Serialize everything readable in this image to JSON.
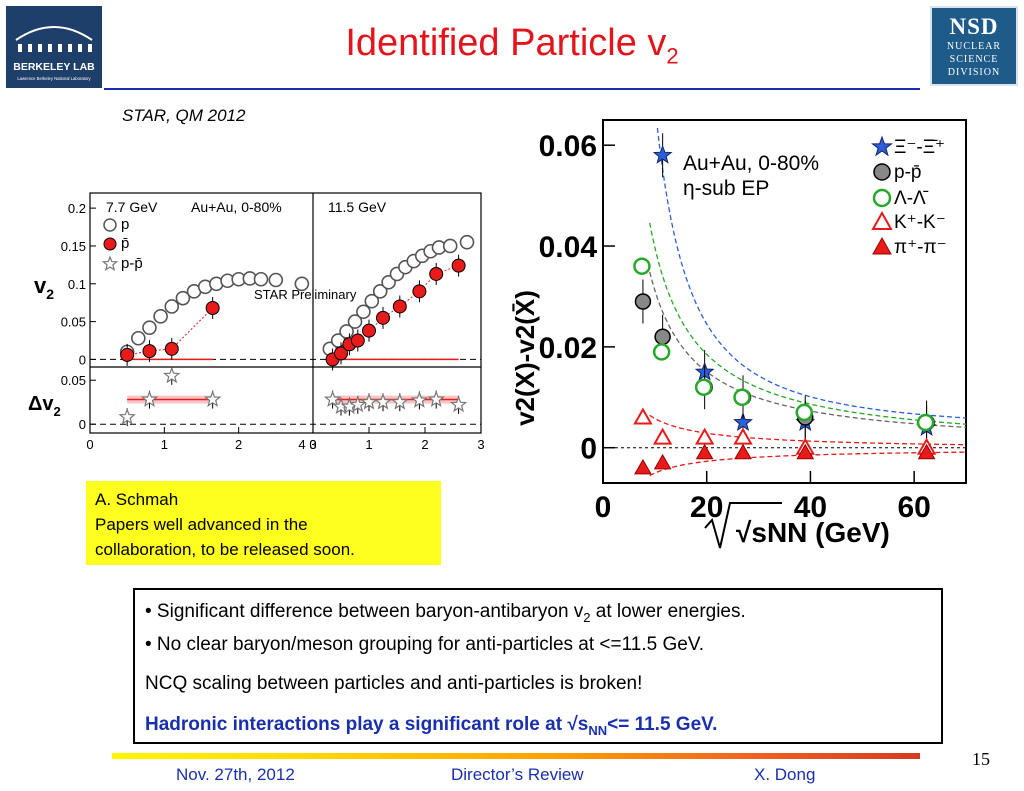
{
  "slide": {
    "title_main": "Identified Particle v",
    "title_sub": "2",
    "reference": "STAR, QM 2012",
    "page_number": "15"
  },
  "logos": {
    "left_line1": "BERKELEY LAB",
    "left_line2": "Lawrence Berkeley National Laboratory",
    "right_abbr": "NSD",
    "right_line1": "NUCLEAR",
    "right_line2": "SCIENCE",
    "right_line3": "DIVISION"
  },
  "note_box": {
    "line1": "A. Schmah",
    "line2": "Papers well advanced in the",
    "line3": "collaboration, to be released soon."
  },
  "summary": {
    "bullet1_pre": "• Significant difference between baryon-antibaryon v",
    "bullet1_sub": "2",
    "bullet1_post": " at lower energies.",
    "bullet2": "• No clear baryon/meson grouping for anti-particles at <=11.5 GeV.",
    "line3": "NCQ scaling between particles and anti-particles is broken!",
    "line4_pre": "Hadronic interactions play a significant role at √s",
    "line4_sub": "NN",
    "line4_post": "<= 11.5 GeV."
  },
  "footer": {
    "date": "Nov. 27th, 2012",
    "event": "Director’s Review",
    "author": "X. Dong"
  },
  "colors": {
    "title": "#e3141b",
    "accent_blue": "#1a2fb0",
    "note_bg": "#ffff1f",
    "proton_red": "#e81a1a",
    "green": "#27a829",
    "star_blue": "#2d5fd8"
  },
  "chart_data": [
    {
      "type": "scatter",
      "title": "7.7 GeV",
      "annotation": "Au+Au, 0-80%",
      "ylabel_main": "v",
      "ylabel_sub": "2",
      "ylabel_delta": "Δv",
      "xlim": [
        0,
        3
      ],
      "ylim": [
        -0.01,
        0.22
      ],
      "ylim_delta": [
        -0.01,
        0.065
      ],
      "yticks": [
        "0",
        "0.05",
        "0.1",
        "0.15",
        "0.2"
      ],
      "yticks_delta": [
        "0",
        "0.05"
      ],
      "xticks": [
        "0",
        "1",
        "2",
        "3"
      ],
      "legend": [
        "p",
        "p̄",
        "p-p̄"
      ],
      "series": [
        {
          "name": "p",
          "x": [
            0.5,
            0.65,
            0.8,
            0.95,
            1.1,
            1.25,
            1.4,
            1.55,
            1.7,
            1.85,
            2.0,
            2.15,
            2.3,
            2.5,
            2.85
          ],
          "y": [
            0.01,
            0.028,
            0.042,
            0.057,
            0.07,
            0.081,
            0.09,
            0.096,
            0.1,
            0.104,
            0.106,
            0.107,
            0.106,
            0.105,
            0.1
          ]
        },
        {
          "name": "p̄",
          "x": [
            0.5,
            0.8,
            1.1,
            1.65
          ],
          "y": [
            0.006,
            0.011,
            0.014,
            0.068
          ]
        },
        {
          "name": "p-p̄",
          "x": [
            0.5,
            0.8,
            1.1,
            1.65
          ],
          "y": [
            0.008,
            0.028,
            0.055,
            0.028
          ]
        }
      ]
    },
    {
      "type": "scatter",
      "title": "11.5 GeV",
      "annotation": "STAR Preliminary",
      "xlim": [
        0,
        3
      ],
      "ylim": [
        -0.01,
        0.22
      ],
      "ylim_delta": [
        -0.01,
        0.065
      ],
      "xticks": [
        "0",
        "1",
        "2",
        "3"
      ],
      "series": [
        {
          "name": "p",
          "x": [
            0.3,
            0.45,
            0.6,
            0.75,
            0.9,
            1.05,
            1.2,
            1.35,
            1.5,
            1.65,
            1.8,
            1.95,
            2.1,
            2.25,
            2.45,
            2.75
          ],
          "y": [
            0.014,
            0.025,
            0.037,
            0.05,
            0.063,
            0.077,
            0.09,
            0.102,
            0.113,
            0.122,
            0.13,
            0.137,
            0.143,
            0.148,
            0.15,
            0.155
          ]
        },
        {
          "name": "p̄",
          "x": [
            0.35,
            0.5,
            0.65,
            0.8,
            1.0,
            1.25,
            1.55,
            1.9,
            2.2,
            2.6
          ],
          "y": [
            0.0,
            0.008,
            0.02,
            0.025,
            0.038,
            0.055,
            0.07,
            0.09,
            0.113,
            0.124
          ]
        },
        {
          "name": "p-p̄",
          "x": [
            0.35,
            0.5,
            0.65,
            0.8,
            1.0,
            1.25,
            1.55,
            1.9,
            2.2,
            2.6
          ],
          "y": [
            0.028,
            0.02,
            0.02,
            0.022,
            0.025,
            0.025,
            0.025,
            0.027,
            0.028,
            0.022
          ]
        }
      ]
    },
    {
      "type": "scatter",
      "title": "Au+Au, 0-80%",
      "subtitle": "η-sub EP",
      "ylabel": "v2(X)-v2(X̄)",
      "xlabel": "√sNN (GeV)",
      "xlim": [
        0,
        70
      ],
      "ylim": [
        -0.007,
        0.065
      ],
      "xticks": [
        "0",
        "20",
        "40",
        "60"
      ],
      "yticks": [
        "0",
        "0.02",
        "0.04",
        "0.06"
      ],
      "legend_position": "top-right",
      "series": [
        {
          "name": "Ξ⁻-Ξ̄⁺",
          "x": [
            11.5,
            19.6,
            27,
            39,
            62.4
          ],
          "y": [
            0.058,
            0.015,
            0.005,
            0.005,
            0.004
          ]
        },
        {
          "name": "p-p̄",
          "x": [
            7.7,
            11.5,
            19.6,
            27,
            39,
            62.4
          ],
          "y": [
            0.029,
            0.022,
            0.012,
            0.01,
            0.006,
            0.005
          ]
        },
        {
          "name": "Λ-Λ̄",
          "x": [
            7.7,
            11.5,
            19.6,
            27,
            39,
            62.4
          ],
          "y": [
            0.036,
            0.019,
            0.012,
            0.01,
            0.007,
            0.005
          ]
        },
        {
          "name": "K⁺-K⁻",
          "x": [
            7.7,
            11.5,
            19.6,
            27,
            39,
            62.4
          ],
          "y": [
            0.006,
            0.002,
            0.002,
            0.002,
            0.0,
            0.0
          ]
        },
        {
          "name": "π⁺-π⁻",
          "x": [
            7.7,
            11.5,
            19.6,
            27,
            39,
            62.4
          ],
          "y": [
            -0.004,
            -0.003,
            -0.001,
            -0.001,
            -0.001,
            -0.001
          ]
        }
      ]
    }
  ]
}
